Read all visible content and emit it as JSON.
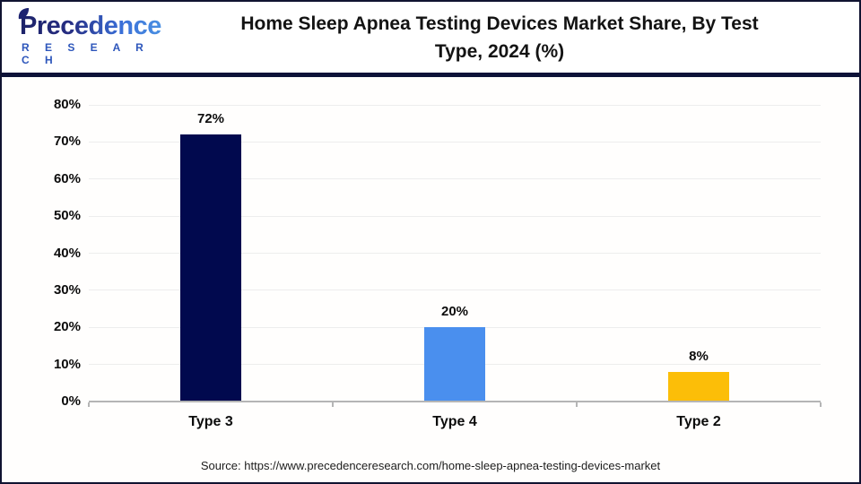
{
  "logo": {
    "brand": "Precedence",
    "sub": "R E S E A R C H"
  },
  "header": {
    "title_line1": "Home Sleep Apnea Testing Devices Market Share, By Test",
    "title_line2": "Type, 2024 (%)"
  },
  "source": {
    "text": "Source: https://www.precedenceresearch.com/home-sleep-apnea-testing-devices-market"
  },
  "chart_data": {
    "type": "bar",
    "title": "Home Sleep Apnea Testing Devices Market Share, By Test Type, 2024 (%)",
    "categories": [
      "Type 3",
      "Type 4",
      "Type 2"
    ],
    "values": [
      72,
      20,
      8
    ],
    "value_labels": [
      "72%",
      "20%",
      "8%"
    ],
    "bar_colors": [
      "#01094e",
      "#4a8fee",
      "#fcbe08"
    ],
    "xlabel": "",
    "ylabel": "",
    "ylim": [
      0,
      80
    ],
    "ytick_step": 10,
    "ytick_labels": [
      "0%",
      "10%",
      "20%",
      "30%",
      "40%",
      "50%",
      "60%",
      "70%",
      "80%"
    ],
    "grid": true,
    "legend_position": "none",
    "colors": {
      "gridline": "#ededed",
      "axis": "#b5b5b5",
      "title_text": "#131313",
      "separator": "#0d1238",
      "logo_blue": "#2d56bb"
    }
  }
}
